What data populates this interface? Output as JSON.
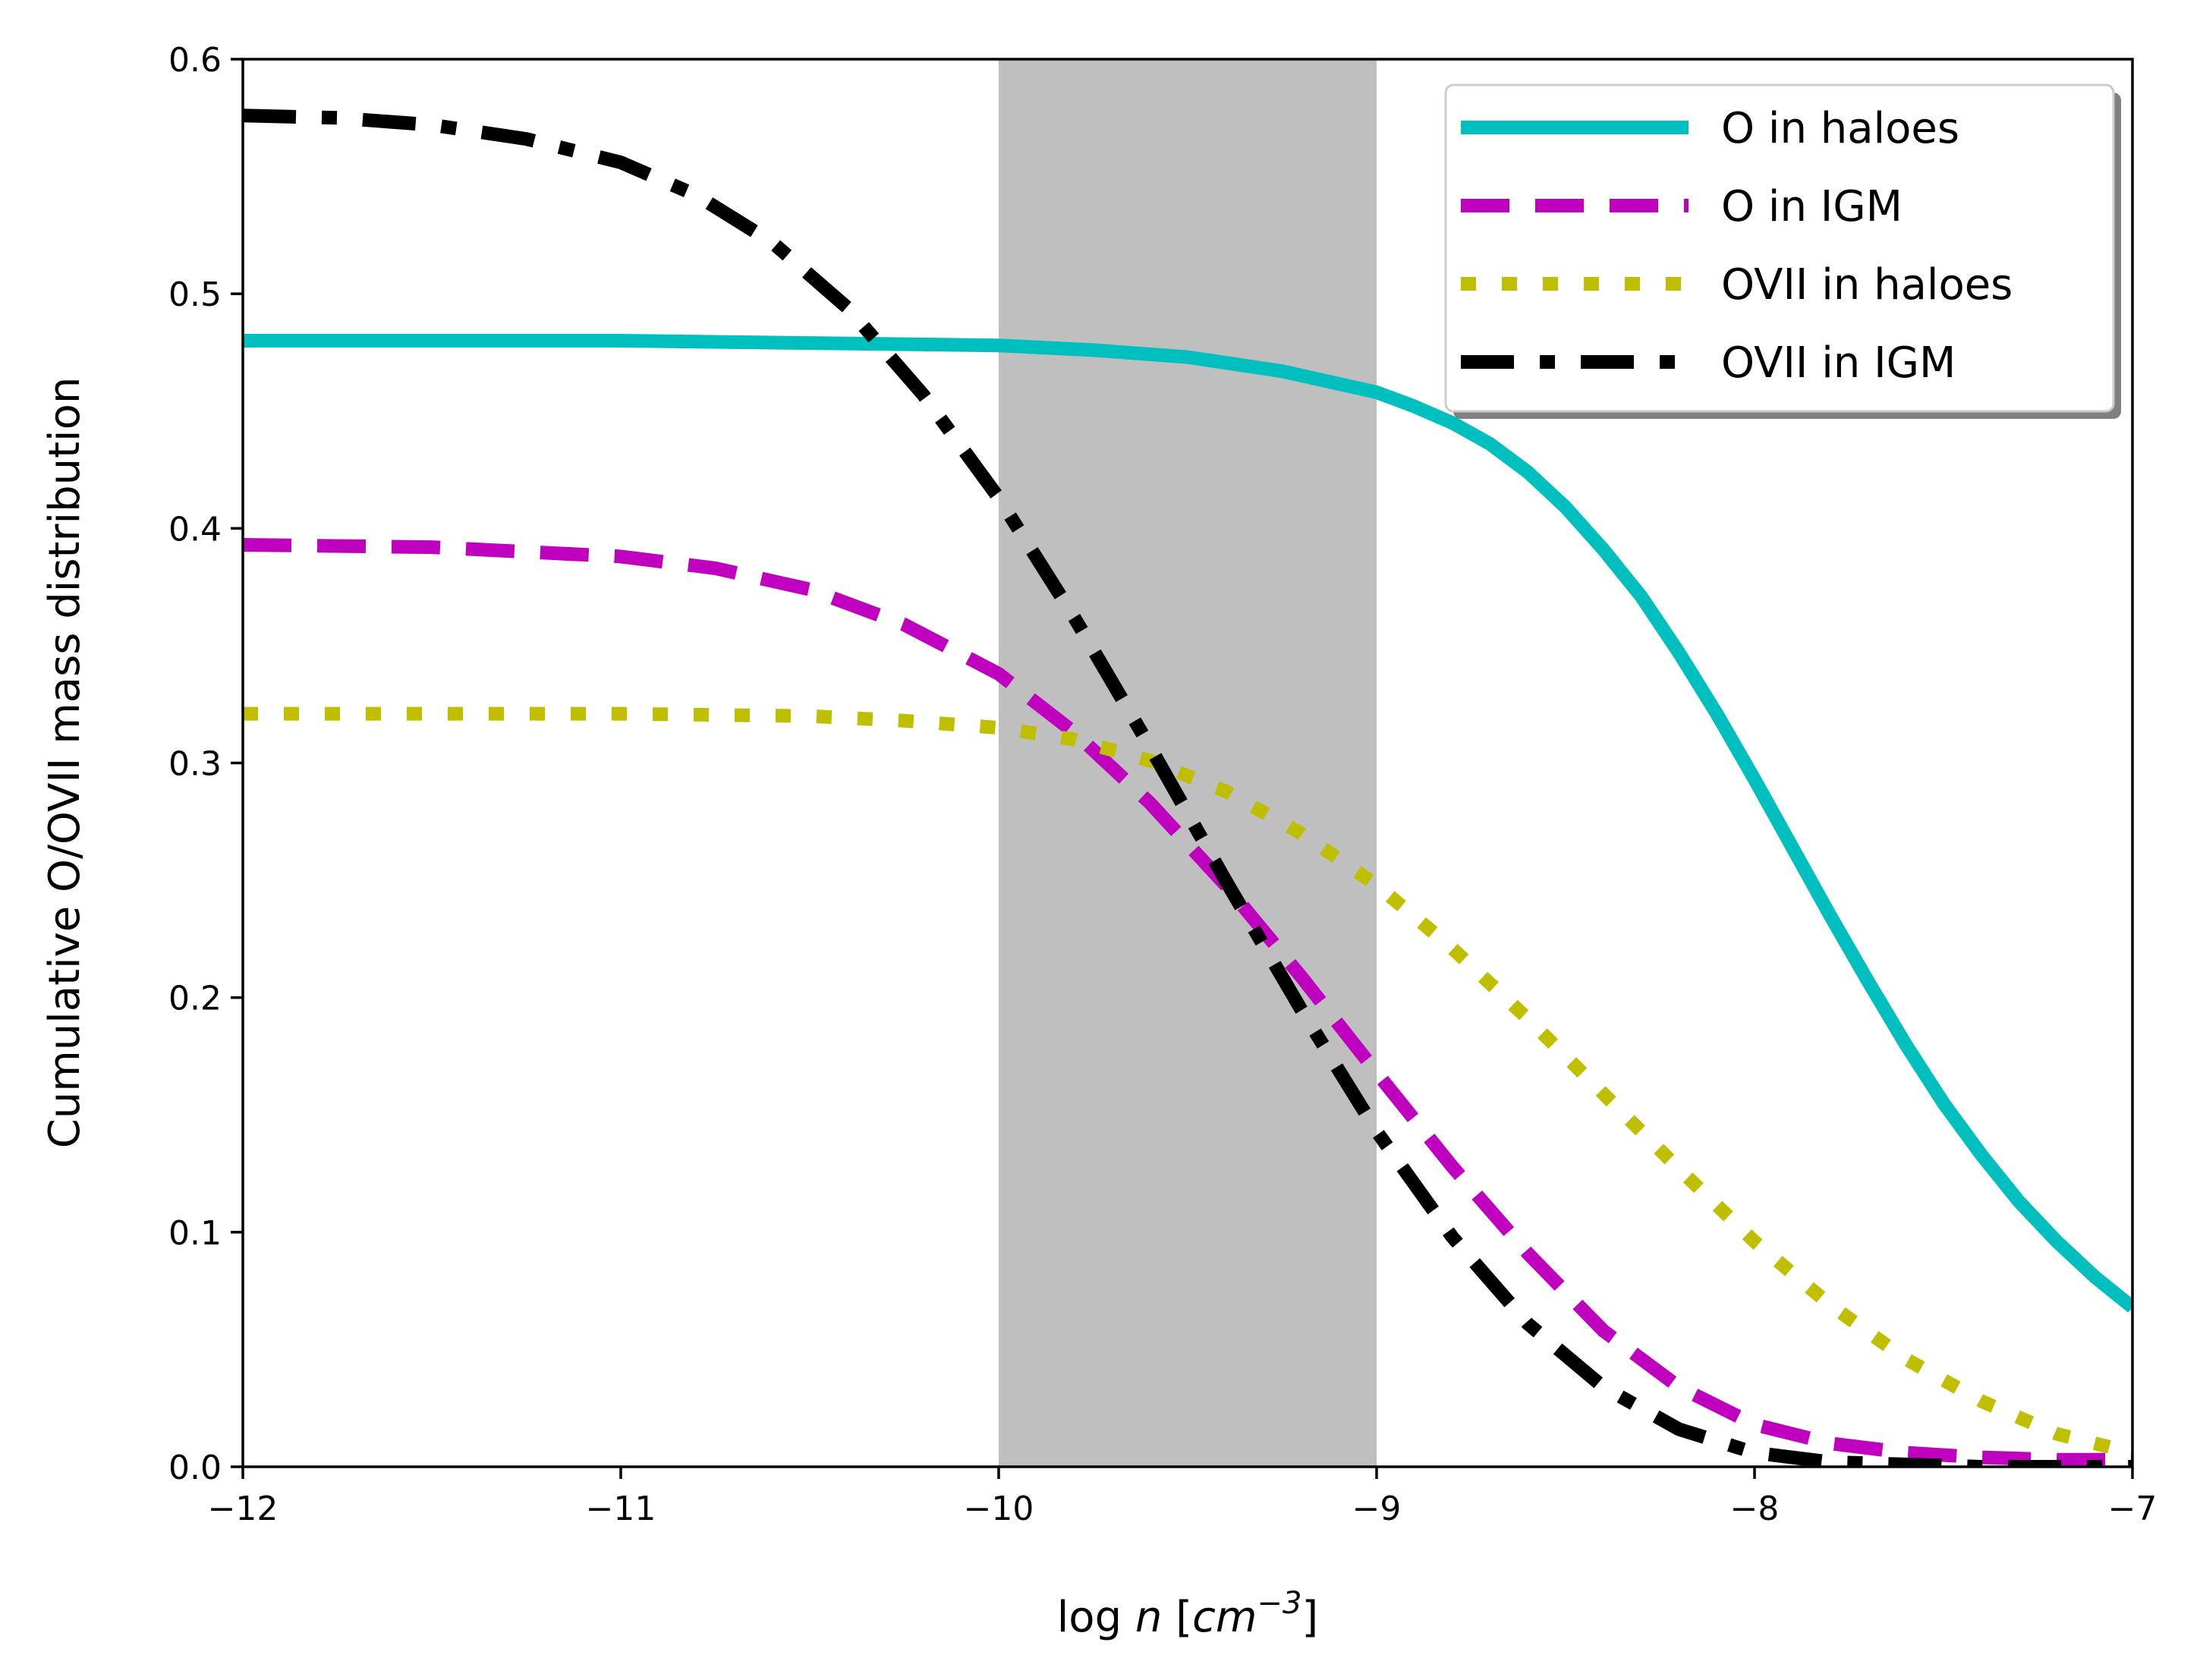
{
  "chart_data": {
    "type": "line",
    "title": "",
    "xlabel": {
      "prefix": "log ",
      "var": "n",
      "open": " [",
      "unit": "cm",
      "exp": "−3",
      "close": "]"
    },
    "ylabel": "Cumulative O/OVII mass distribution",
    "xlim": [
      -12,
      -7
    ],
    "ylim": [
      0.0,
      0.6
    ],
    "xticks": [
      -12,
      -11,
      -10,
      -9,
      -8,
      -7
    ],
    "xtick_labels": [
      "−12",
      "−11",
      "−10",
      "−9",
      "−8",
      "−7"
    ],
    "yticks": [
      0.0,
      0.1,
      0.2,
      0.3,
      0.4,
      0.5,
      0.6
    ],
    "ytick_labels": [
      "0.0",
      "0.1",
      "0.2",
      "0.3",
      "0.4",
      "0.5",
      "0.6"
    ],
    "grid": false,
    "shaded_band": {
      "x": [
        -10,
        -9
      ],
      "color": "#bfbfbf"
    },
    "legend_position": "top-right",
    "series": [
      {
        "name": "O in haloes",
        "color": "#00bfbf",
        "style": "solid",
        "x": [
          -12,
          -11.5,
          -11,
          -10.5,
          -10,
          -9.75,
          -9.5,
          -9.25,
          -9,
          -8.9,
          -8.8,
          -8.7,
          -8.6,
          -8.5,
          -8.4,
          -8.3,
          -8.2,
          -8.1,
          -8,
          -7.9,
          -7.8,
          -7.7,
          -7.6,
          -7.5,
          -7.4,
          -7.3,
          -7.2,
          -7.1,
          -7
        ],
        "y": [
          0.48,
          0.48,
          0.48,
          0.479,
          0.478,
          0.476,
          0.473,
          0.467,
          0.458,
          0.452,
          0.445,
          0.436,
          0.424,
          0.409,
          0.391,
          0.371,
          0.347,
          0.321,
          0.293,
          0.264,
          0.235,
          0.207,
          0.18,
          0.155,
          0.133,
          0.113,
          0.096,
          0.081,
          0.068
        ]
      },
      {
        "name": "O in IGM",
        "color": "#bf00bf",
        "style": "dashed",
        "x": [
          -12,
          -11.5,
          -11,
          -10.75,
          -10.5,
          -10.25,
          -10,
          -9.8,
          -9.6,
          -9.4,
          -9.2,
          -9,
          -8.8,
          -8.6,
          -8.4,
          -8.2,
          -8,
          -7.8,
          -7.6,
          -7.4,
          -7.2,
          -7
        ],
        "y": [
          0.393,
          0.392,
          0.388,
          0.383,
          0.374,
          0.359,
          0.338,
          0.313,
          0.283,
          0.248,
          0.209,
          0.168,
          0.128,
          0.091,
          0.058,
          0.034,
          0.018,
          0.01,
          0.006,
          0.004,
          0.003,
          0.003
        ]
      },
      {
        "name": "OVII in haloes",
        "color": "#bfbf00",
        "style": "dotted",
        "x": [
          -12,
          -11.5,
          -11,
          -10.5,
          -10.25,
          -10,
          -9.8,
          -9.6,
          -9.4,
          -9.2,
          -9,
          -8.8,
          -8.6,
          -8.4,
          -8.2,
          -8,
          -7.8,
          -7.6,
          -7.4,
          -7.2,
          -7
        ],
        "y": [
          0.321,
          0.321,
          0.321,
          0.32,
          0.318,
          0.315,
          0.31,
          0.301,
          0.288,
          0.27,
          0.248,
          0.221,
          0.191,
          0.159,
          0.127,
          0.096,
          0.069,
          0.046,
          0.028,
          0.014,
          0.006
        ]
      },
      {
        "name": "OVII in IGM",
        "color": "#000000",
        "style": "dashdot",
        "x": [
          -12,
          -11.75,
          -11.5,
          -11.25,
          -11,
          -10.8,
          -10.6,
          -10.4,
          -10.2,
          -10,
          -9.8,
          -9.6,
          -9.4,
          -9.2,
          -9,
          -8.8,
          -8.6,
          -8.4,
          -8.2,
          -8,
          -7.8,
          -7.6,
          -7.4,
          -7.2,
          -7
        ],
        "y": [
          0.576,
          0.575,
          0.572,
          0.566,
          0.556,
          0.542,
          0.522,
          0.494,
          0.457,
          0.413,
          0.362,
          0.307,
          0.25,
          0.195,
          0.143,
          0.098,
          0.061,
          0.034,
          0.016,
          0.006,
          0.002,
          0.001,
          0.0,
          0.0,
          0.0
        ]
      }
    ]
  }
}
